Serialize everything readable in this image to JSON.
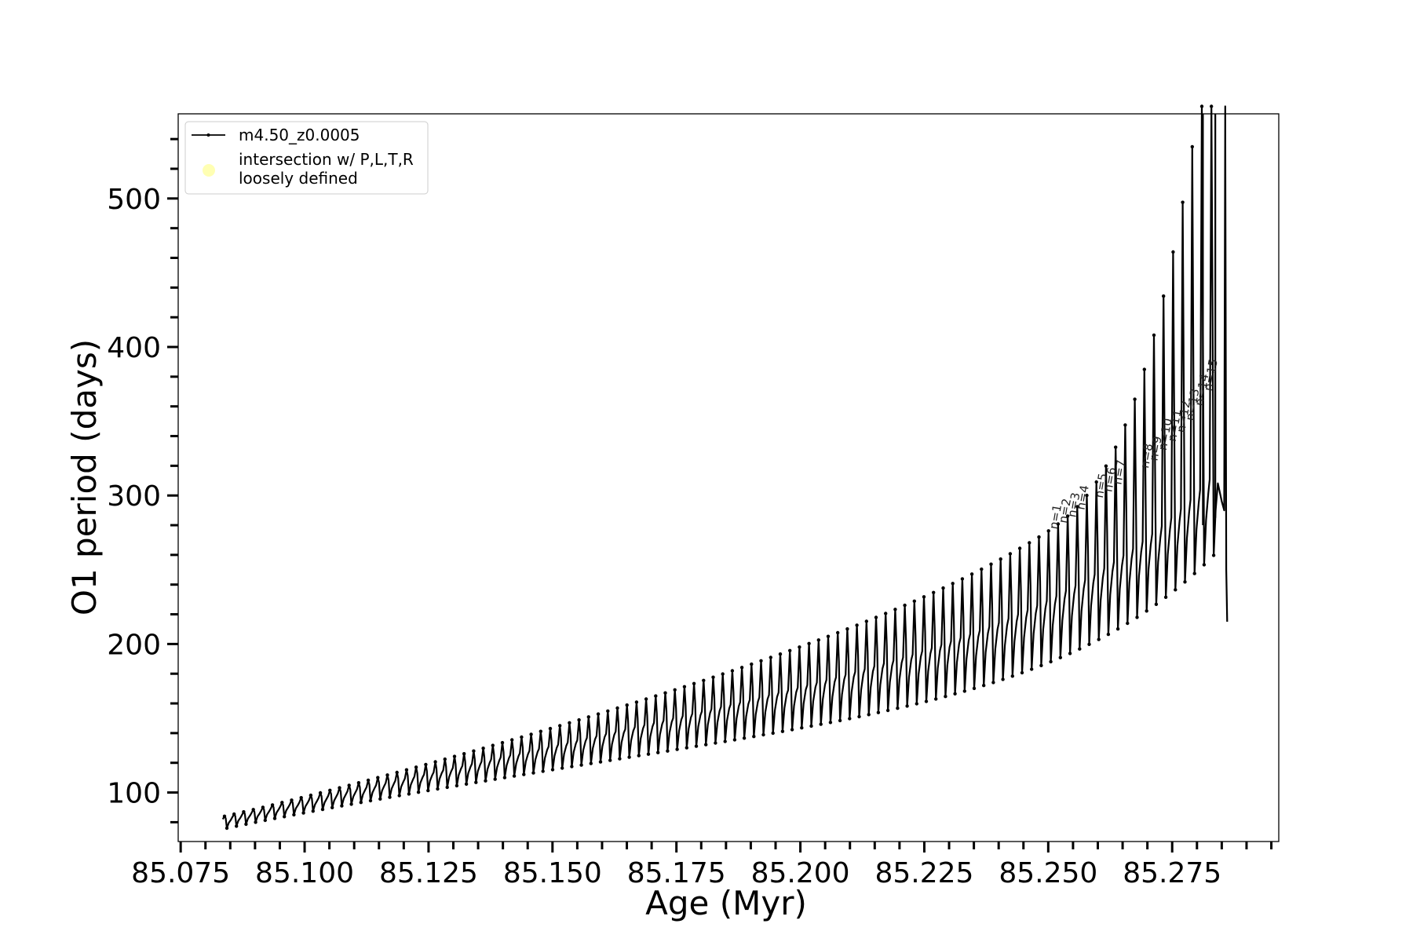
{
  "chart_data": {
    "type": "line",
    "xlabel": "Age (Myr)",
    "ylabel": "O1 period (days)",
    "xlim": [
      85.0745,
      85.2965
    ],
    "ylim": [
      67,
      557
    ],
    "x_tick_labels": [
      "85.075",
      "85.100",
      "85.125",
      "85.150",
      "85.175",
      "85.200",
      "85.225",
      "85.250",
      "85.275"
    ],
    "y_tick_labels": [
      "100",
      "200",
      "300",
      "400",
      "500"
    ],
    "grid": false,
    "legend_position": "top-left",
    "series": [
      {
        "name": "m4.50_z0.0005",
        "color": "#000000",
        "description_points": {
          "x": [
            85.0835,
            85.1,
            85.125,
            85.15,
            85.175,
            85.2,
            85.225,
            85.25,
            85.27,
            85.28,
            85.2855
          ],
          "y_mid": [
            82,
            108,
            128,
            145,
            170,
            195,
            218,
            240,
            258,
            278,
            295
          ],
          "y_min": [
            76,
            85,
            96,
            108,
            118,
            133,
            148,
            172,
            200,
            250,
            275
          ],
          "y_max": [
            87,
            110,
            140,
            160,
            175,
            200,
            225,
            255,
            340,
            430,
            560
          ]
        }
      },
      {
        "name": "intersection w/ P,L,T,R\nloosely defined",
        "color": "#ffffb3",
        "marker": "circle"
      }
    ],
    "annotations": [
      {
        "text": "n=1",
        "x": 85.2518,
        "y": 277
      },
      {
        "text": "n=2",
        "x": 85.2537,
        "y": 281
      },
      {
        "text": "n=3",
        "x": 85.2555,
        "y": 285
      },
      {
        "text": "n=4",
        "x": 85.2573,
        "y": 290
      },
      {
        "text": "n=5",
        "x": 85.261,
        "y": 298
      },
      {
        "text": "n=6",
        "x": 85.2628,
        "y": 302
      },
      {
        "text": "n=7",
        "x": 85.2647,
        "y": 307
      },
      {
        "text": "n=8",
        "x": 85.2702,
        "y": 318
      },
      {
        "text": "n=9",
        "x": 85.272,
        "y": 323
      },
      {
        "text": "n=10",
        "x": 85.2738,
        "y": 330
      },
      {
        "text": "n=11",
        "x": 85.2757,
        "y": 336
      },
      {
        "text": "n=12",
        "x": 85.2775,
        "y": 342
      },
      {
        "text": "n=13",
        "x": 85.2793,
        "y": 350
      },
      {
        "text": "n=14",
        "x": 85.2812,
        "y": 360
      },
      {
        "text": "n=15",
        "x": 85.283,
        "y": 370
      }
    ]
  }
}
